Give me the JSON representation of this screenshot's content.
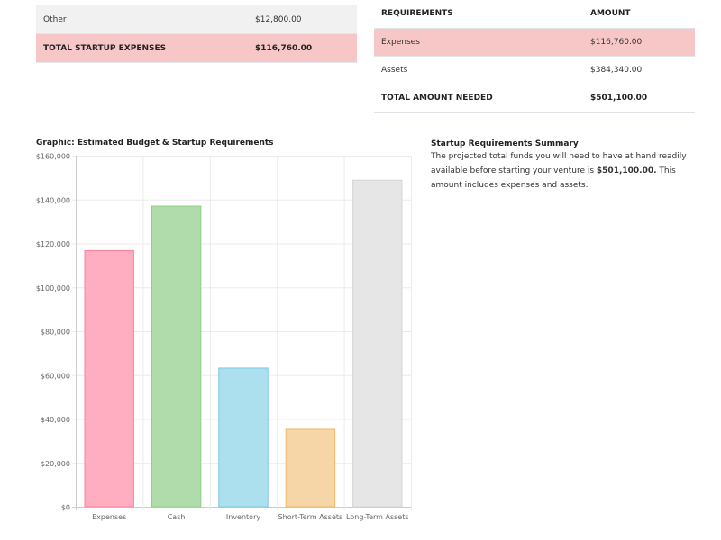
{
  "expenses_table": {
    "rows": [
      {
        "label": "Other",
        "amount": "$12,800.00"
      }
    ],
    "total": {
      "label": "TOTAL STARTUP EXPENSES",
      "amount": "$116,760.00"
    }
  },
  "requirements_table": {
    "headers": {
      "label": "REQUIREMENTS",
      "amount": "AMOUNT"
    },
    "rows": [
      {
        "label": "Expenses",
        "amount": "$116,760.00"
      },
      {
        "label": "Assets",
        "amount": "$384,340.00"
      }
    ],
    "total": {
      "label": "TOTAL AMOUNT NEEDED",
      "amount": "$501,100.00"
    }
  },
  "summary": {
    "title": "Startup Requirements Summary",
    "text_before": "The projected total funds you will need to have at hand readily available before starting your venture is ",
    "amount": "$501,100.00.",
    "text_after": " This amount includes expenses and assets."
  },
  "chart_data": {
    "type": "bar",
    "title": "Graphic: Estimated Budget & Startup Requirements",
    "categories": [
      "Expenses",
      "Cash",
      "Inventory",
      "Short-Term Assets",
      "Long-Term Assets"
    ],
    "values": [
      116760,
      137000,
      63200,
      35300,
      148840
    ],
    "colors": [
      "#ffadc0",
      "#afdcaa",
      "#ade0ee",
      "#f6d6a6",
      "#e6e6e6"
    ],
    "borders": [
      "#ff7f9c",
      "#8ccf85",
      "#7cc8e0",
      "#f0b866",
      "#d4d4d4"
    ],
    "ylim": [
      0,
      160000
    ],
    "yticks": [
      "$0",
      "$20,000",
      "$40,000",
      "$60,000",
      "$80,000",
      "$100,000",
      "$120,000",
      "$140,000",
      "$160,000"
    ],
    "grid": true,
    "xlabel": "",
    "ylabel": ""
  }
}
